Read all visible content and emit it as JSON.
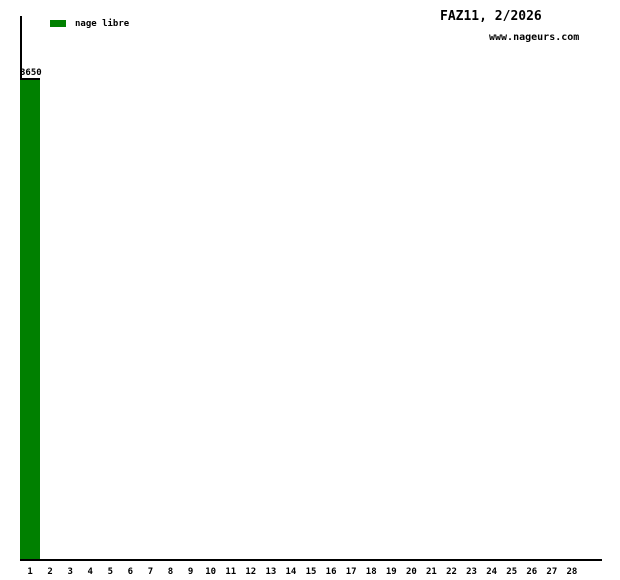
{
  "header": {
    "title": "FAZ11, 2/2026",
    "website": "www.nageurs.com"
  },
  "legend": {
    "label": "nage libre",
    "color": "#008000"
  },
  "colors": {
    "axis": "#000000",
    "background": "#ffffff",
    "bar_fill": "#008000",
    "bar_outline": "#000000"
  },
  "chart_data": {
    "type": "bar",
    "title": "FAZ11, 2/2026",
    "subtitle": "www.nageurs.com",
    "xlabel": "",
    "ylabel": "",
    "grid": false,
    "legend_position": "top-left",
    "ylim": [
      0,
      4120
    ],
    "categories": [
      "1",
      "2",
      "3",
      "4",
      "5",
      "6",
      "7",
      "8",
      "9",
      "10",
      "11",
      "12",
      "13",
      "14",
      "15",
      "16",
      "17",
      "18",
      "19",
      "20",
      "21",
      "22",
      "23",
      "24",
      "25",
      "26",
      "27",
      "28"
    ],
    "series": [
      {
        "name": "nage libre",
        "color": "#008000",
        "values": [
          3650,
          0,
          0,
          0,
          0,
          0,
          0,
          0,
          0,
          0,
          0,
          0,
          0,
          0,
          0,
          0,
          0,
          0,
          0,
          0,
          0,
          0,
          0,
          0,
          0,
          0,
          0,
          0
        ]
      }
    ],
    "data_labels": [
      "3650"
    ]
  }
}
